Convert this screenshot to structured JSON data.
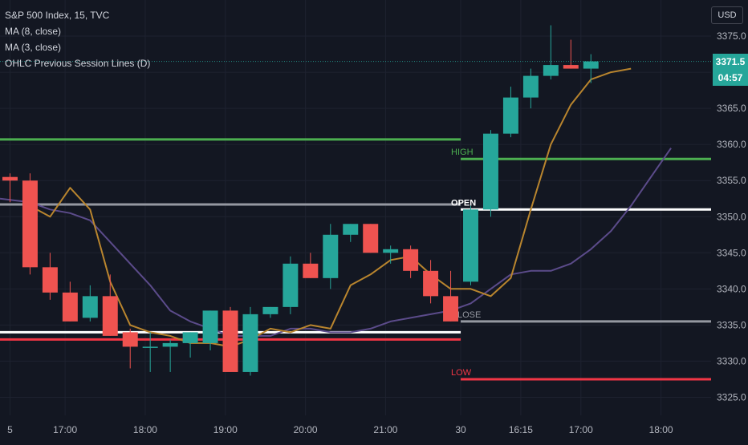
{
  "legend": {
    "symbol": "S&P 500 Index, 15, TVC",
    "ma8": "MA (8, close)",
    "ma3": "MA (3, close)",
    "ohlc": "OHLC Previous Session Lines (D)"
  },
  "currency": "USD",
  "last_price": "3371.5",
  "countdown": "04:57",
  "colors": {
    "background": "#131722",
    "up": "#26a69a",
    "down": "#ef5350",
    "ma8": "#5b4b8a",
    "ma3": "#b9852e",
    "high_line": "#4caf50",
    "open_line": "#ffffff",
    "close_line": "#9598a1",
    "low_line": "#f23645",
    "grid": "#1e2230"
  },
  "chart_data": {
    "type": "candlestick",
    "y_ticks": [
      "3375.0",
      "3370.0",
      "3365.0",
      "3360.0",
      "3355.0",
      "3350.0",
      "3345.0",
      "3340.0",
      "3335.0",
      "3330.0",
      "3325.0"
    ],
    "y_tick_values": [
      3375,
      3370,
      3365,
      3360,
      3355,
      3350,
      3345,
      3340,
      3335,
      3330,
      3325
    ],
    "ylim": [
      3322.5,
      3380
    ],
    "x_ticks": [
      {
        "label": "5",
        "index": 0
      },
      {
        "label": "17:00",
        "index": 2.75
      },
      {
        "label": "18:00",
        "index": 6.75
      },
      {
        "label": "19:00",
        "index": 10.75
      },
      {
        "label": "20:00",
        "index": 14.75
      },
      {
        "label": "21:00",
        "index": 18.75
      },
      {
        "label": "30",
        "index": 22.5
      },
      {
        "label": "16:15",
        "index": 25.5
      },
      {
        "label": "17:00",
        "index": 28.5
      },
      {
        "label": "18:00",
        "index": 32.5
      }
    ],
    "xlim": [
      -0.5,
      35
    ],
    "candles": [
      {
        "o": 3355.5,
        "h": 3356,
        "l": 3352,
        "c": 3355
      },
      {
        "o": 3355,
        "h": 3356,
        "l": 3342,
        "c": 3343
      },
      {
        "o": 3343,
        "h": 3345,
        "l": 3338.5,
        "c": 3339.5
      },
      {
        "o": 3339.5,
        "h": 3341,
        "l": 3335.5,
        "c": 3335.5
      },
      {
        "o": 3336,
        "h": 3340.5,
        "l": 3335.5,
        "c": 3339
      },
      {
        "o": 3339,
        "h": 3342,
        "l": 3333.5,
        "c": 3333.5
      },
      {
        "o": 3334,
        "h": 3334.5,
        "l": 3329,
        "c": 3332
      },
      {
        "o": 3332,
        "h": 3334,
        "l": 3328.5,
        "c": 3332
      },
      {
        "o": 3332,
        "h": 3333,
        "l": 3328.5,
        "c": 3332.5
      },
      {
        "o": 3332.5,
        "h": 3334,
        "l": 3330.5,
        "c": 3334
      },
      {
        "o": 3332.5,
        "h": 3337,
        "l": 3331.5,
        "c": 3337
      },
      {
        "o": 3337,
        "h": 3337.5,
        "l": 3328.5,
        "c": 3328.5
      },
      {
        "o": 3328.5,
        "h": 3337.5,
        "l": 3328,
        "c": 3336.5
      },
      {
        "o": 3336.5,
        "h": 3337.5,
        "l": 3336,
        "c": 3337.5
      },
      {
        "o": 3337.5,
        "h": 3344.5,
        "l": 3336.5,
        "c": 3343.5
      },
      {
        "o": 3343.5,
        "h": 3345,
        "l": 3341.5,
        "c": 3341.5
      },
      {
        "o": 3341.5,
        "h": 3349,
        "l": 3340,
        "c": 3347.5
      },
      {
        "o": 3347.5,
        "h": 3349,
        "l": 3346.5,
        "c": 3349
      },
      {
        "o": 3349,
        "h": 3349,
        "l": 3345,
        "c": 3345
      },
      {
        "o": 3345,
        "h": 3346,
        "l": 3343.5,
        "c": 3345.5
      },
      {
        "o": 3345.5,
        "h": 3346,
        "l": 3341.5,
        "c": 3342.5
      },
      {
        "o": 3342.5,
        "h": 3344,
        "l": 3338,
        "c": 3339
      },
      {
        "o": 3339,
        "h": 3342.5,
        "l": 3335.5,
        "c": 3335.5
      },
      {
        "o": 3341,
        "h": 3351.5,
        "l": 3340.5,
        "c": 3351
      },
      {
        "o": 3351,
        "h": 3362,
        "l": 3350,
        "c": 3361.5
      },
      {
        "o": 3361.5,
        "h": 3368,
        "l": 3361,
        "c": 3366.5
      },
      {
        "o": 3366.5,
        "h": 3370.5,
        "l": 3365,
        "c": 3369.5
      },
      {
        "o": 3369.5,
        "h": 3376.5,
        "l": 3369,
        "c": 3371
      },
      {
        "o": 3371,
        "h": 3374.5,
        "l": 3370.5,
        "c": 3370.5
      },
      {
        "o": 3370.5,
        "h": 3372.5,
        "l": 3368.5,
        "c": 3371.5
      }
    ],
    "ma8": {
      "name": "MA (8, close)",
      "x": [
        -0.5,
        1,
        2,
        3,
        4,
        5,
        6,
        7,
        8,
        9,
        10,
        11,
        12,
        13,
        14,
        15,
        16,
        17,
        18,
        19,
        20,
        21,
        22,
        23,
        24,
        25,
        26,
        27,
        28,
        29,
        30,
        31,
        32,
        33
      ],
      "y": [
        3352.5,
        3352,
        3351,
        3350.5,
        3349.5,
        3346.5,
        3343.5,
        3340.5,
        3337,
        3335.5,
        3334.5,
        3333.5,
        3333.5,
        3333.5,
        3334.5,
        3334.5,
        3334,
        3334,
        3334.5,
        3335.5,
        3336,
        3336.5,
        3337,
        3338,
        3340,
        3342,
        3342.5,
        3342.5,
        3343.5,
        3345.5,
        3348,
        3351.5,
        3355.5,
        3359.5
      ]
    },
    "ma3": {
      "name": "MA (3, close)",
      "x": [
        1,
        2,
        3,
        4,
        5,
        6,
        7,
        8,
        9,
        10,
        11,
        12,
        13,
        14,
        15,
        16,
        17,
        18,
        19,
        20,
        21,
        22,
        23,
        24,
        25,
        26,
        27,
        28,
        29,
        30,
        31
      ],
      "y": [
        3351.5,
        3350,
        3354,
        3351,
        3341,
        3335,
        3334,
        3333.5,
        3332.5,
        3332.5,
        3332,
        3333,
        3334.5,
        3334,
        3335,
        3334.5,
        3340.5,
        3342,
        3344,
        3344.5,
        3342,
        3340,
        3340,
        3339,
        3341.5,
        3351,
        3360,
        3365.5,
        3369,
        3370,
        3370.5
      ]
    },
    "prev_session_left": {
      "x_range": [
        -0.5,
        22.5
      ],
      "high": 3360.7,
      "open": 3351.7,
      "close": 3334,
      "low": 3333
    },
    "session_lines": {
      "x_range": [
        22.5,
        35
      ],
      "high": {
        "label": "HIGH",
        "value": 3358
      },
      "open": {
        "label": "OPEN",
        "value": 3351
      },
      "close": {
        "label": "CLOSE",
        "value": 3335.5
      },
      "low": {
        "label": "LOW",
        "value": 3327.5
      }
    },
    "current_price_line": 3371.5,
    "grid": true
  }
}
